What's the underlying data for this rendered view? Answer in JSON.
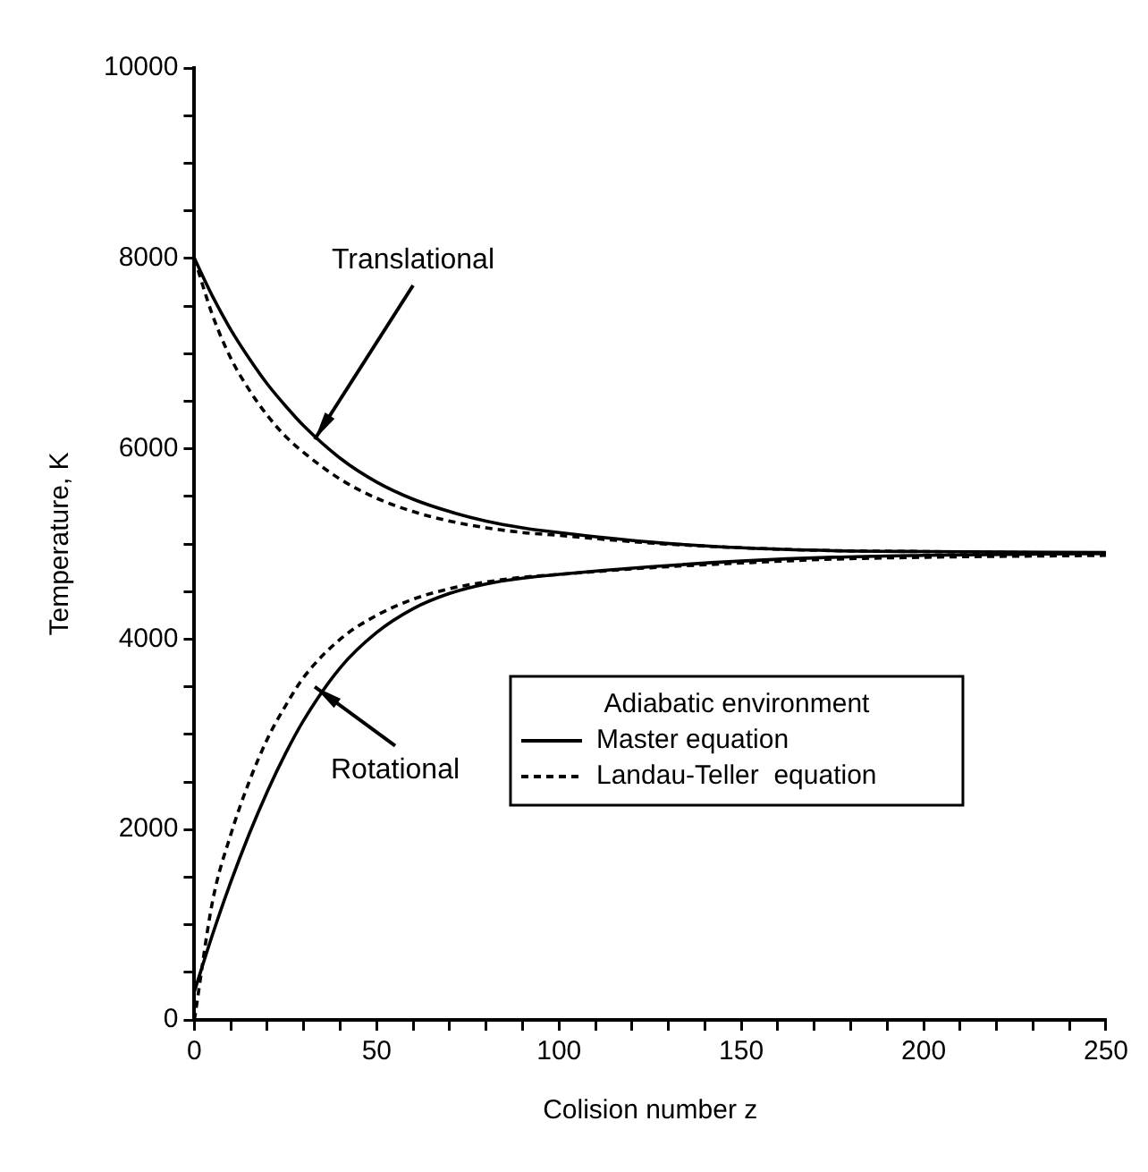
{
  "chart_data": {
    "type": "line",
    "xlabel": "Colision number z",
    "ylabel": "Temperature, K",
    "legend_title": "Adiabatic environment",
    "legend": "bottom right",
    "grid": false,
    "marker": "none",
    "x": [
      0,
      5,
      10,
      15,
      20,
      25,
      30,
      40,
      50,
      60,
      70,
      80,
      90,
      100,
      125,
      150,
      175,
      200,
      250
    ],
    "xlim": [
      0,
      250
    ],
    "xticks": [
      0,
      {
        "value": 10,
        "label": null
      },
      {
        "value": 20,
        "label": null
      },
      {
        "value": 30,
        "label": null
      },
      {
        "value": 40,
        "label": null
      },
      50,
      {
        "value": 60,
        "label": null
      },
      {
        "value": 70,
        "label": null
      },
      {
        "value": 80,
        "label": null
      },
      {
        "value": 90,
        "label": null
      },
      100,
      {
        "value": 110,
        "label": null
      },
      {
        "value": 120,
        "label": null
      },
      {
        "value": 130,
        "label": null
      },
      {
        "value": 140,
        "label": null
      },
      150,
      {
        "value": 160,
        "label": null
      },
      {
        "value": 170,
        "label": null
      },
      {
        "value": 180,
        "label": null
      },
      {
        "value": 190,
        "label": null
      },
      200,
      {
        "value": 210,
        "label": null
      },
      {
        "value": 220,
        "label": null
      },
      {
        "value": 230,
        "label": null
      },
      {
        "value": 240,
        "label": null
      },
      250
    ],
    "ylim": [
      0,
      10000
    ],
    "yticks": [
      0,
      {
        "value": 500,
        "label": null
      },
      {
        "value": 1000,
        "label": null
      },
      {
        "value": 1500,
        "label": null
      },
      2000,
      {
        "value": 2500,
        "label": null
      },
      {
        "value": 3000,
        "label": null
      },
      {
        "value": 3500,
        "label": null
      },
      4000,
      {
        "value": 4500,
        "label": null
      },
      {
        "value": 5000,
        "label": null
      },
      {
        "value": 5500,
        "label": null
      },
      6000,
      {
        "value": 6500,
        "label": null
      },
      {
        "value": 7000,
        "label": null
      },
      {
        "value": 7500,
        "label": null
      },
      8000,
      {
        "value": 8500,
        "label": null
      },
      {
        "value": 9000,
        "label": null
      },
      {
        "value": 9500,
        "label": null
      },
      10000
    ],
    "series": [
      {
        "name": "Master equation",
        "color": "#000000",
        "line_style": "solid",
        "values": [
          8000,
          7600,
          7250,
          6950,
          6680,
          6450,
          6240,
          5900,
          5650,
          5470,
          5340,
          5240,
          5170,
          5120,
          5020,
          4960,
          4930,
          4920,
          4910
        ]
      },
      {
        "name": "Landau-Teller  equation",
        "color": "#000000",
        "line_style": "dashed",
        "values": [
          8000,
          7400,
          6950,
          6620,
          6350,
          6130,
          5960,
          5680,
          5480,
          5340,
          5240,
          5170,
          5120,
          5090,
          5010,
          4960,
          4930,
          4920,
          4900
        ]
      },
      {
        "color": "#000000",
        "line_style": "solid",
        "values": [
          300,
          900,
          1450,
          1950,
          2400,
          2800,
          3150,
          3700,
          4070,
          4320,
          4480,
          4580,
          4640,
          4680,
          4760,
          4820,
          4860,
          4880,
          4900
        ]
      },
      {
        "color": "#000000",
        "line_style": "dashed",
        "values": [
          0,
          1250,
          1950,
          2500,
          2950,
          3300,
          3600,
          4000,
          4250,
          4420,
          4530,
          4600,
          4650,
          4680,
          4750,
          4800,
          4840,
          4860,
          4880
        ]
      }
    ],
    "annotations": [
      {
        "text": "Translational",
        "x": 33,
        "y": 6100
      },
      {
        "text": "Rotational",
        "x": 33,
        "y": 3500
      }
    ]
  }
}
